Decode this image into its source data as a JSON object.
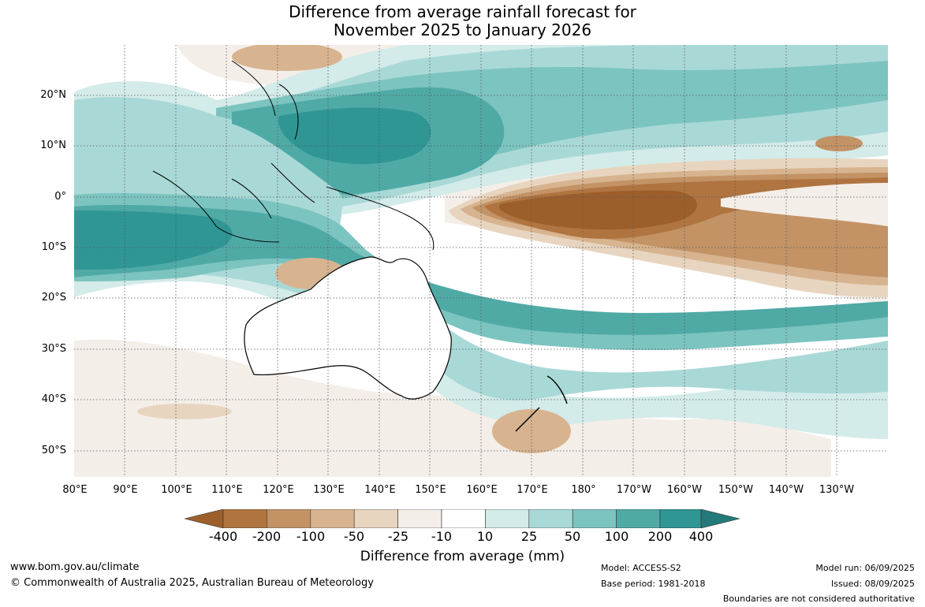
{
  "title": {
    "line1": "Difference from average rainfall forecast for",
    "line2": "November 2025 to January 2026"
  },
  "map": {
    "lat_labels": [
      "20°N",
      "10°N",
      "0°",
      "10°S",
      "20°S",
      "30°S",
      "40°S",
      "50°S"
    ],
    "lon_labels": [
      "80°E",
      "90°E",
      "100°E",
      "110°E",
      "120°E",
      "130°E",
      "140°E",
      "150°E",
      "160°E",
      "170°E",
      "180°",
      "170°W",
      "160°W",
      "150°W",
      "140°W",
      "130°W"
    ]
  },
  "legend": {
    "title": "Difference from average (mm)",
    "ticks": [
      "-400",
      "-200",
      "-100",
      "-50",
      "-25",
      "-10",
      "10",
      "25",
      "50",
      "100",
      "200",
      "400"
    ],
    "colors": [
      "#9c5f2c",
      "#b07440",
      "#c39366",
      "#d7b48f",
      "#e8d5c0",
      "#f4eee8",
      "#ffffff",
      "#d3ebe9",
      "#a9d9d7",
      "#7cc4c0",
      "#4faaa6",
      "#2f9694",
      "#237a78"
    ]
  },
  "footer": {
    "website": "www.bom.gov.au/climate",
    "copyright": "© Commonwealth of Australia 2025, Australian Bureau of Meteorology",
    "model": "Model: ACCESS-S2",
    "base_period": "Base period: 1981-2018",
    "model_run": "Model run: 06/09/2025",
    "issued": "Issued: 08/09/2025",
    "disclaimer": "Boundaries are not considered authoritative"
  }
}
